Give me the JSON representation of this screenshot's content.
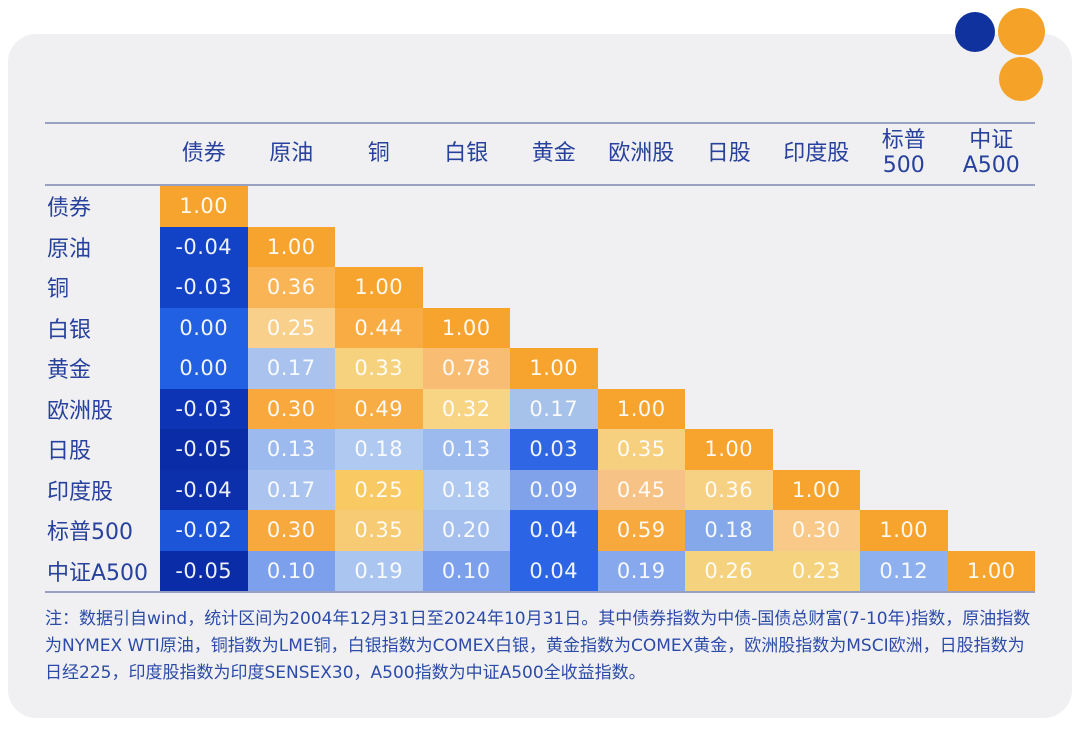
{
  "logo": {
    "blue": "#10329e",
    "orange": "#f4a228"
  },
  "table": {
    "columns": [
      "债券",
      "原油",
      "铜",
      "白银",
      "黄金",
      "欧洲股",
      "日股",
      "印度股",
      "标普\n500",
      "中证\nA500"
    ],
    "rows": [
      {
        "label": "债券",
        "values": [
          "1.00"
        ],
        "colors": [
          "#f7a42e"
        ]
      },
      {
        "label": "原油",
        "values": [
          "-0.04",
          "1.00"
        ],
        "colors": [
          "#1243c6",
          "#f7a42e"
        ]
      },
      {
        "label": "铜",
        "values": [
          "-0.03",
          "0.36",
          "1.00"
        ],
        "colors": [
          "#1243c6",
          "#f9b455",
          "#f7a42e"
        ]
      },
      {
        "label": "白银",
        "values": [
          "0.00",
          "0.25",
          "0.44",
          "1.00"
        ],
        "colors": [
          "#2160e2",
          "#f8cf8b",
          "#f9ab44",
          "#f7a42e"
        ]
      },
      {
        "label": "黄金",
        "values": [
          "0.00",
          "0.17",
          "0.33",
          "0.78",
          "1.00"
        ],
        "colors": [
          "#2160e2",
          "#a9c3ee",
          "#f6d27e",
          "#f8bc72",
          "#f7a42e"
        ]
      },
      {
        "label": "欧洲股",
        "values": [
          "-0.03",
          "0.30",
          "0.49",
          "0.32",
          "0.17",
          "1.00"
        ],
        "colors": [
          "#0c34b4",
          "#f8a83c",
          "#f8ad44",
          "#f7d584",
          "#a6c2ea",
          "#f7a42e"
        ]
      },
      {
        "label": "日股",
        "values": [
          "-0.05",
          "0.13",
          "0.18",
          "0.13",
          "0.03",
          "0.35",
          "1.00"
        ],
        "colors": [
          "#0a2ca6",
          "#9cbaee",
          "#b0c9f1",
          "#9cbaee",
          "#2e66e4",
          "#f6d07e",
          "#f7a42e"
        ]
      },
      {
        "label": "印度股",
        "values": [
          "-0.04",
          "0.17",
          "0.25",
          "0.18",
          "0.09",
          "0.45",
          "0.36",
          "1.00"
        ],
        "colors": [
          "#0c30ac",
          "#aac4ef",
          "#f9c963",
          "#b0c9f1",
          "#7fa2ea",
          "#f6c286",
          "#f6d184",
          "#f7a42e"
        ]
      },
      {
        "label": "标普500",
        "values": [
          "-0.02",
          "0.30",
          "0.35",
          "0.20",
          "0.04",
          "0.59",
          "0.18",
          "0.30",
          "1.00"
        ],
        "colors": [
          "#1d55d8",
          "#f8a93e",
          "#f7ca74",
          "#a5c0ef",
          "#2b64e4",
          "#f8a93e",
          "#84a8ea",
          "#f8c988",
          "#f7a42e"
        ]
      },
      {
        "label": "中证A500",
        "values": [
          "-0.05",
          "0.10",
          "0.19",
          "0.10",
          "0.04",
          "0.19",
          "0.26",
          "0.23",
          "0.12",
          "1.00"
        ],
        "colors": [
          "#0a2ca6",
          "#7ca0ec",
          "#abc5f1",
          "#7ca0ec",
          "#2b64e4",
          "#87a8ec",
          "#f5d37e",
          "#f5d37e",
          "#8fb0ee",
          "#f7a42e"
        ]
      }
    ]
  },
  "note": {
    "text": "注：数据引自wind，统计区间为2004年12月31日至2024年10月31日。其中债券指数为中债-国债总财富(7-10年)指数，原油指数为NYMEX WTI原油，铜指数为LME铜，白银指数为COMEX白银，黄金指数为COMEX黄金，欧洲股指数为MSCI欧洲，日股指数为日经225，印度股指数为印度SENSEX30，A500指数为中证A500全收益指数。"
  },
  "chart_data": {
    "type": "heatmap",
    "title": "资产相关性矩阵 (correlation matrix, lower triangular)",
    "categories": [
      "债券",
      "原油",
      "铜",
      "白银",
      "黄金",
      "欧洲股",
      "日股",
      "印度股",
      "标普500",
      "中证A500"
    ],
    "matrix": [
      [
        1.0
      ],
      [
        -0.04,
        1.0
      ],
      [
        -0.03,
        0.36,
        1.0
      ],
      [
        0.0,
        0.25,
        0.44,
        1.0
      ],
      [
        0.0,
        0.17,
        0.33,
        0.78,
        1.0
      ],
      [
        -0.03,
        0.3,
        0.49,
        0.32,
        0.17,
        1.0
      ],
      [
        -0.05,
        0.13,
        0.18,
        0.13,
        0.03,
        0.35,
        1.0
      ],
      [
        -0.04,
        0.17,
        0.25,
        0.18,
        0.09,
        0.45,
        0.36,
        1.0
      ],
      [
        -0.02,
        0.3,
        0.35,
        0.2,
        0.04,
        0.59,
        0.18,
        0.3,
        1.0
      ],
      [
        -0.05,
        0.1,
        0.19,
        0.1,
        0.04,
        0.19,
        0.26,
        0.23,
        0.12,
        1.0
      ]
    ],
    "colorscale_hint": "deep blue = negative/near-zero, light blue = low positive, pale yellow = ~0.2-0.35, orange = high/1.00",
    "value_range": [
      -0.05,
      1.0
    ],
    "legend": "none",
    "grid": "off"
  }
}
